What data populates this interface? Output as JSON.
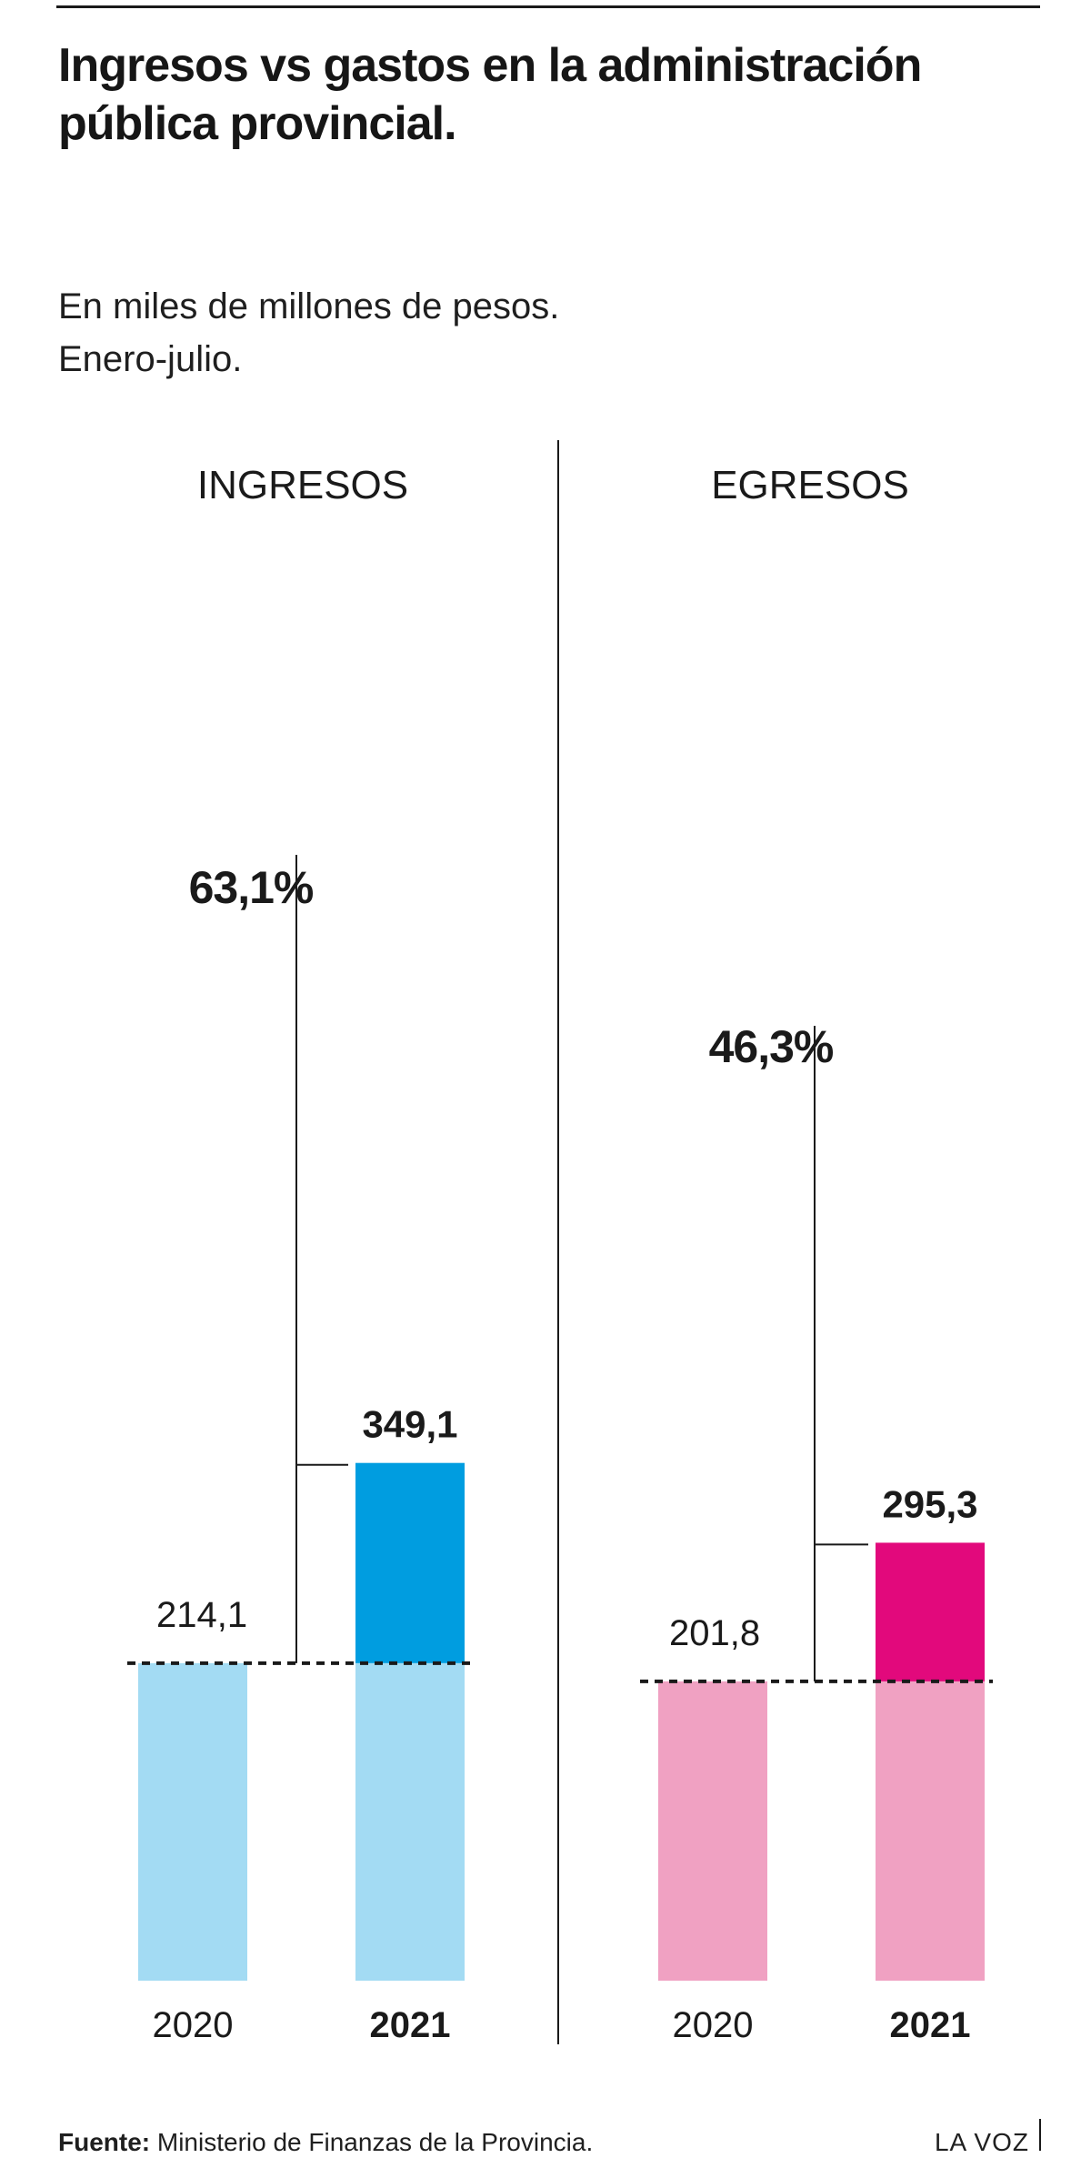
{
  "title": "Ingresos vs gastos en la administración pública provincial.",
  "subtitle": {
    "line1": "En miles de millones de pesos.",
    "line2": "Enero-julio."
  },
  "footer": {
    "source_label": "Fuente:",
    "source_text": " Ministerio de Finanzas de la Provincia.",
    "brand": "LA VOZ"
  },
  "colors": {
    "ingresos_2020": "#a3dbf3",
    "ingresos_2021": "#009de0",
    "egresos_2020": "#f0a1c2",
    "egresos_2021": "#e2097c",
    "text": "#1a1a1a"
  },
  "chart_data": [
    {
      "type": "bar",
      "title": "INGRESOS",
      "categories": [
        "2020",
        "2021"
      ],
      "values": [
        214.1,
        349.1
      ],
      "value_labels": [
        "214,1",
        "349,1"
      ],
      "change_label": "63,1%",
      "ylim": [
        0,
        349.1
      ],
      "grid": false
    },
    {
      "type": "bar",
      "title": "EGRESOS",
      "categories": [
        "2020",
        "2021"
      ],
      "values": [
        201.8,
        295.3
      ],
      "value_labels": [
        "201,8",
        "295,3"
      ],
      "change_label": "46,3%",
      "ylim": [
        0,
        349.1
      ],
      "grid": false
    }
  ]
}
